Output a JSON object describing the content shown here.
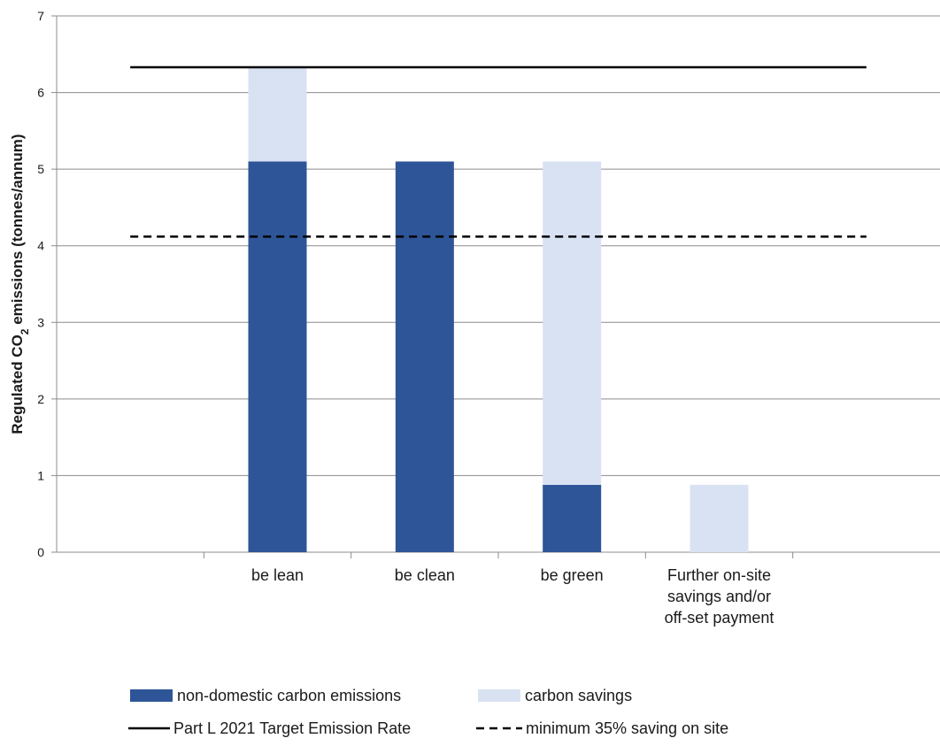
{
  "chart_data": {
    "type": "bar",
    "stacked": true,
    "categories": [
      "",
      "be lean",
      "be clean",
      "be green",
      "Further on-site savings and/or off-set payment",
      ""
    ],
    "category_lines": [
      [],
      [
        "be lean"
      ],
      [
        "be clean"
      ],
      [
        "be green"
      ],
      [
        "Further on-site",
        "savings and/or",
        "off-set payment"
      ],
      []
    ],
    "series": [
      {
        "name": "non-domestic carbon emissions",
        "color": "#2e5597",
        "values": [
          0,
          5.1,
          5.1,
          0.88,
          0,
          0
        ]
      },
      {
        "name": "carbon savings",
        "color": "#d9e2f3",
        "values": [
          0,
          1.23,
          0,
          4.22,
          0.88,
          0
        ]
      }
    ],
    "reference_lines": [
      {
        "name": "Part L 2021 Target Emission Rate",
        "value": 6.33,
        "style": "solid",
        "color": "#000000"
      },
      {
        "name": "minimum 35% saving on site",
        "value": 4.12,
        "style": "dashed",
        "color": "#000000"
      }
    ],
    "ylabel_parts": {
      "before": "Regulated CO",
      "sub": "2",
      "after": " emissions (tonnes/annum)"
    },
    "ylim": [
      0,
      7
    ],
    "yticks": [
      "0",
      "1",
      "2",
      "3",
      "4",
      "5",
      "6",
      "7"
    ],
    "grid": true,
    "legend_position": "bottom"
  }
}
